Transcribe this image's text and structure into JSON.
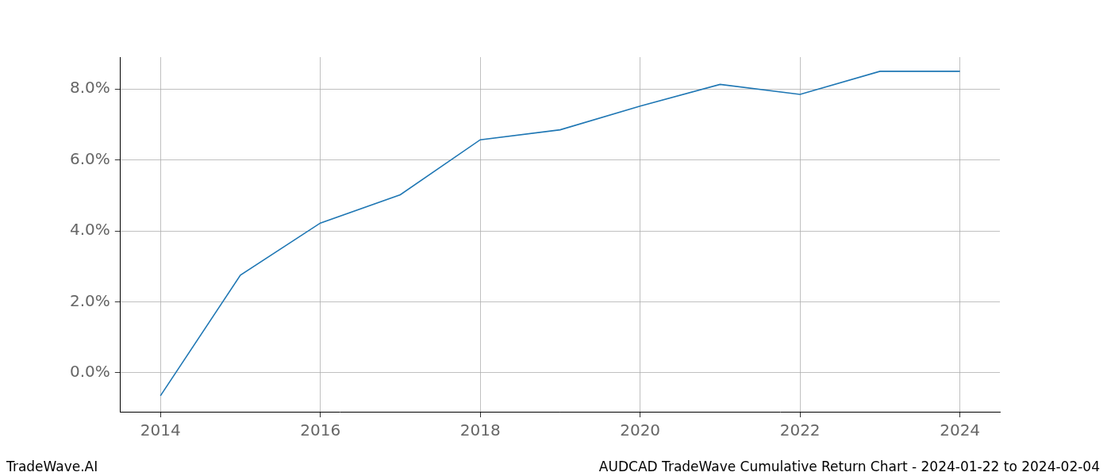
{
  "chart_data": {
    "type": "line",
    "annotations": [
      "TradeWave.AI",
      "AUDCAD TradeWave Cumulative Return Chart - 2024-01-22 to 2024-02-04"
    ],
    "x": [
      2014,
      2015,
      2016,
      2017,
      2018,
      2019,
      2020,
      2021,
      2022,
      2023,
      2024
    ],
    "values": [
      -0.65,
      2.75,
      4.22,
      5.02,
      6.57,
      6.85,
      7.52,
      8.13,
      7.85,
      8.5,
      8.5
    ],
    "color": "#1f77b4",
    "xlim": [
      2013.5,
      2024.5
    ],
    "xticks": [
      2014,
      2016,
      2018,
      2020,
      2022,
      2024
    ],
    "ylim": [
      -1.1,
      8.9
    ],
    "yticks": [
      {
        "value": 0,
        "label": "0.0%"
      },
      {
        "value": 2,
        "label": "2.0%"
      },
      {
        "value": 4,
        "label": "4.0%"
      },
      {
        "value": 6,
        "label": "6.0%"
      },
      {
        "value": 8,
        "label": "8.0%"
      }
    ],
    "grid": true
  }
}
